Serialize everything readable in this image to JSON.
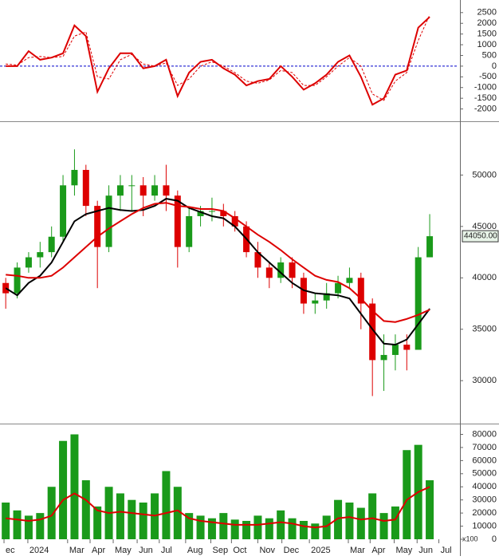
{
  "chart_data": [
    {
      "type": "line",
      "x": [
        0.5,
        1.5,
        2.5,
        3.5,
        4.5,
        5.5,
        6.5,
        7.5,
        8.5,
        9.5,
        10.5,
        11.5,
        12.5,
        13.5,
        14.5,
        15.5,
        16.5,
        17.5,
        18.5,
        19.5,
        20.5,
        21.5,
        22.5,
        23.5,
        24.5,
        25.5,
        26.5,
        27.5,
        28.5,
        29.5,
        30.5,
        31.5,
        32.5,
        33.5,
        34.5,
        35.5,
        36.5,
        37.5
      ],
      "xlim": [
        0,
        40
      ],
      "ylim": [
        -2500,
        2940
      ],
      "yticks": [
        -2000,
        -1500,
        -1000,
        -500,
        0,
        500,
        1000,
        1500,
        2000,
        2500
      ],
      "hline": {
        "value": 0,
        "color": "#0000cc"
      },
      "series": [
        {
          "color": "#dd0000",
          "dash": false,
          "values": [
            0,
            0,
            700,
            300,
            400,
            600,
            1900,
            1400,
            -1200,
            -100,
            600,
            600,
            -100,
            0,
            300,
            -1400,
            -300,
            200,
            300,
            -100,
            -400,
            -900,
            -700,
            -600,
            0,
            -500,
            -1100,
            -800,
            -400,
            200,
            500,
            -500,
            -1800,
            -1500,
            -400,
            -200,
            1800,
            2300
          ]
        },
        {
          "color": "#dd0000",
          "dash": true,
          "values": [
            100,
            50,
            400,
            450,
            400,
            450,
            1400,
            1600,
            -500,
            -600,
            300,
            550,
            100,
            0,
            150,
            -900,
            -600,
            0,
            200,
            0,
            -300,
            -700,
            -800,
            -650,
            -200,
            -300,
            -900,
            -900,
            -500,
            0,
            400,
            0,
            -1300,
            -1600,
            -700,
            -300,
            1200,
            2400
          ]
        }
      ]
    },
    {
      "type": "candlestick",
      "x": [
        0.5,
        1.5,
        2.5,
        3.5,
        4.5,
        5.5,
        6.5,
        7.5,
        8.5,
        9.5,
        10.5,
        11.5,
        12.5,
        13.5,
        14.5,
        15.5,
        16.5,
        17.5,
        18.5,
        19.5,
        20.5,
        21.5,
        22.5,
        23.5,
        24.5,
        25.5,
        26.5,
        27.5,
        28.5,
        29.5,
        30.5,
        31.5,
        32.5,
        33.5,
        34.5,
        35.5,
        36.5,
        37.5
      ],
      "xlim": [
        0,
        40
      ],
      "ylim": [
        25900,
        55000
      ],
      "yticks": [
        30000,
        35000,
        40000,
        45000,
        50000
      ],
      "up_color": "#1a9a1a",
      "down_color": "#dd0000",
      "open": [
        39500,
        38500,
        41000,
        42000,
        42500,
        44000,
        49000,
        50500,
        47000,
        43000,
        48000,
        49000,
        49000,
        48000,
        49000,
        48000,
        43000,
        46000,
        46500,
        46500,
        46000,
        45000,
        42500,
        41000,
        40000,
        41500,
        40000,
        37500,
        37800,
        38500,
        39500,
        40000,
        37500,
        32000,
        32500,
        33500,
        33000,
        42000
      ],
      "high": [
        40000,
        41500,
        42500,
        43500,
        45000,
        50000,
        52500,
        51000,
        47500,
        49000,
        50000,
        50000,
        49800,
        50000,
        51000,
        48500,
        46800,
        47000,
        47800,
        47200,
        46500,
        45500,
        43500,
        41500,
        42000,
        42000,
        40500,
        38500,
        39500,
        40200,
        41000,
        40500,
        38000,
        34500,
        34500,
        34500,
        43000,
        46200
      ],
      "low": [
        37000,
        38000,
        40500,
        41000,
        42000,
        43500,
        48000,
        46000,
        39000,
        42500,
        46500,
        46500,
        46000,
        47500,
        46500,
        41000,
        42500,
        45000,
        45500,
        45000,
        44500,
        42000,
        40000,
        39000,
        39500,
        39000,
        36500,
        36500,
        37000,
        38000,
        39000,
        35000,
        28500,
        29000,
        31000,
        31000,
        33000,
        42000
      ],
      "close": [
        38500,
        41000,
        42000,
        42500,
        44000,
        49000,
        50500,
        47000,
        43000,
        48000,
        49000,
        49000,
        48000,
        49000,
        48000,
        43000,
        46000,
        46500,
        46500,
        46000,
        45000,
        42500,
        41000,
        40000,
        41500,
        40000,
        37500,
        37800,
        38500,
        39500,
        40000,
        37500,
        32000,
        32500,
        33500,
        33000,
        42000,
        44050
      ],
      "last_price": {
        "value": 44050,
        "label": "44050.00"
      },
      "series": [
        {
          "color": "#000000",
          "dash": false,
          "values": [
            39000,
            38300,
            39500,
            40200,
            41500,
            43500,
            45500,
            46200,
            46500,
            46800,
            46600,
            46500,
            46600,
            47000,
            47700,
            47500,
            46800,
            46400,
            46000,
            45800,
            45000,
            43800,
            42500,
            41500,
            40500,
            39500,
            38800,
            38500,
            38400,
            38300,
            38000,
            36500,
            35000,
            33600,
            33500,
            34000,
            35500,
            37000
          ]
        },
        {
          "color": "#dd0000",
          "dash": false,
          "values": [
            40300,
            40200,
            40000,
            40000,
            40200,
            41000,
            42000,
            43000,
            44000,
            44800,
            45500,
            46200,
            46800,
            47200,
            47300,
            47000,
            46900,
            46700,
            46700,
            46500,
            45800,
            45000,
            44200,
            43500,
            42700,
            41800,
            41000,
            40200,
            39800,
            39600,
            39000,
            38000,
            36800,
            35800,
            35700,
            36000,
            36400,
            36900
          ]
        }
      ]
    },
    {
      "type": "bar",
      "x": [
        0.5,
        1.5,
        2.5,
        3.5,
        4.5,
        5.5,
        6.5,
        7.5,
        8.5,
        9.5,
        10.5,
        11.5,
        12.5,
        13.5,
        14.5,
        15.5,
        16.5,
        17.5,
        18.5,
        19.5,
        20.5,
        21.5,
        22.5,
        23.5,
        24.5,
        25.5,
        26.5,
        27.5,
        28.5,
        29.5,
        30.5,
        31.5,
        32.5,
        33.5,
        34.5,
        35.5,
        36.5,
        37.5
      ],
      "xlim": [
        0,
        40
      ],
      "xticks": [
        {
          "value": 0.35,
          "label": "ec"
        },
        {
          "value": 2.43,
          "label": "2024"
        },
        {
          "value": 5.9,
          "label": "Mar"
        },
        {
          "value": 7.86,
          "label": "Apr"
        },
        {
          "value": 9.88,
          "label": "May"
        },
        {
          "value": 11.97,
          "label": "Jun"
        },
        {
          "value": 13.9,
          "label": "Jul"
        },
        {
          "value": 16.2,
          "label": "Aug"
        },
        {
          "value": 18.4,
          "label": "Sep"
        },
        {
          "value": 20.2,
          "label": "Oct"
        },
        {
          "value": 22.5,
          "label": "Nov"
        },
        {
          "value": 24.6,
          "label": "Dec"
        },
        {
          "value": 27.0,
          "label": "2025"
        },
        {
          "value": 30.4,
          "label": "Mar"
        },
        {
          "value": 32.3,
          "label": "Apr"
        },
        {
          "value": 34.4,
          "label": "May"
        },
        {
          "value": 36.4,
          "label": "Jun"
        },
        {
          "value": 38.3,
          "label": "Jul"
        }
      ],
      "ylim": [
        0,
        87000
      ],
      "yticks": [
        0,
        10000,
        20000,
        30000,
        40000,
        50000,
        60000,
        70000,
        80000
      ],
      "unit_label": "x100",
      "color": "#1a9a1a",
      "values": [
        28000,
        22000,
        18000,
        20000,
        40000,
        75000,
        80000,
        45000,
        25000,
        40000,
        35000,
        30000,
        28000,
        35000,
        52000,
        40000,
        20000,
        18000,
        16000,
        20000,
        15000,
        14000,
        18000,
        16000,
        22000,
        16000,
        14000,
        12000,
        18000,
        30000,
        28000,
        24000,
        35000,
        20000,
        25000,
        68000,
        72000,
        45000
      ],
      "series": [
        {
          "color": "#dd0000",
          "dash": false,
          "values": [
            16000,
            15000,
            14000,
            15000,
            18000,
            30000,
            35000,
            30000,
            22000,
            20000,
            21000,
            20000,
            19000,
            18000,
            20000,
            22000,
            16000,
            14000,
            13000,
            12000,
            11000,
            11000,
            11000,
            12000,
            13000,
            12000,
            10000,
            9000,
            10000,
            16000,
            17000,
            15000,
            16000,
            14000,
            15000,
            30000,
            36000,
            40000
          ]
        }
      ]
    }
  ]
}
